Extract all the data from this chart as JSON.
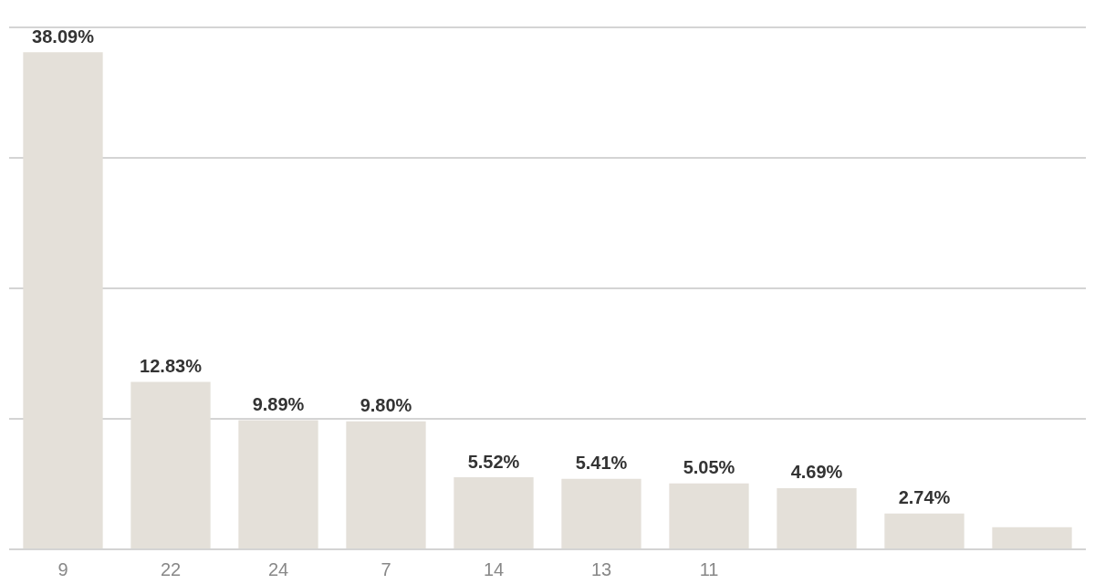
{
  "chart_data": {
    "type": "bar",
    "categories": [
      "9",
      "22",
      "24",
      "7",
      "14",
      "13",
      "11",
      null,
      null,
      null
    ],
    "values": [
      38.09,
      12.83,
      9.89,
      9.8,
      5.52,
      5.41,
      5.05,
      4.69,
      2.74,
      1.7
    ],
    "value_labels": [
      "38.09%",
      "12.83%",
      "9.89%",
      "9.80%",
      "5.52%",
      "5.41%",
      "5.05%",
      "4.69%",
      "2.74%",
      null
    ],
    "color": "#e4e0d9",
    "ylim": [
      0,
      40
    ],
    "yticks": [
      {
        "value": 0,
        "label": null
      },
      {
        "value": 10,
        "label": null
      },
      {
        "value": 20,
        "label": null
      },
      {
        "value": 30,
        "label": null
      },
      {
        "value": 40,
        "label": null
      }
    ],
    "grid": "y",
    "tick_labels": "x",
    "legend": false
  }
}
